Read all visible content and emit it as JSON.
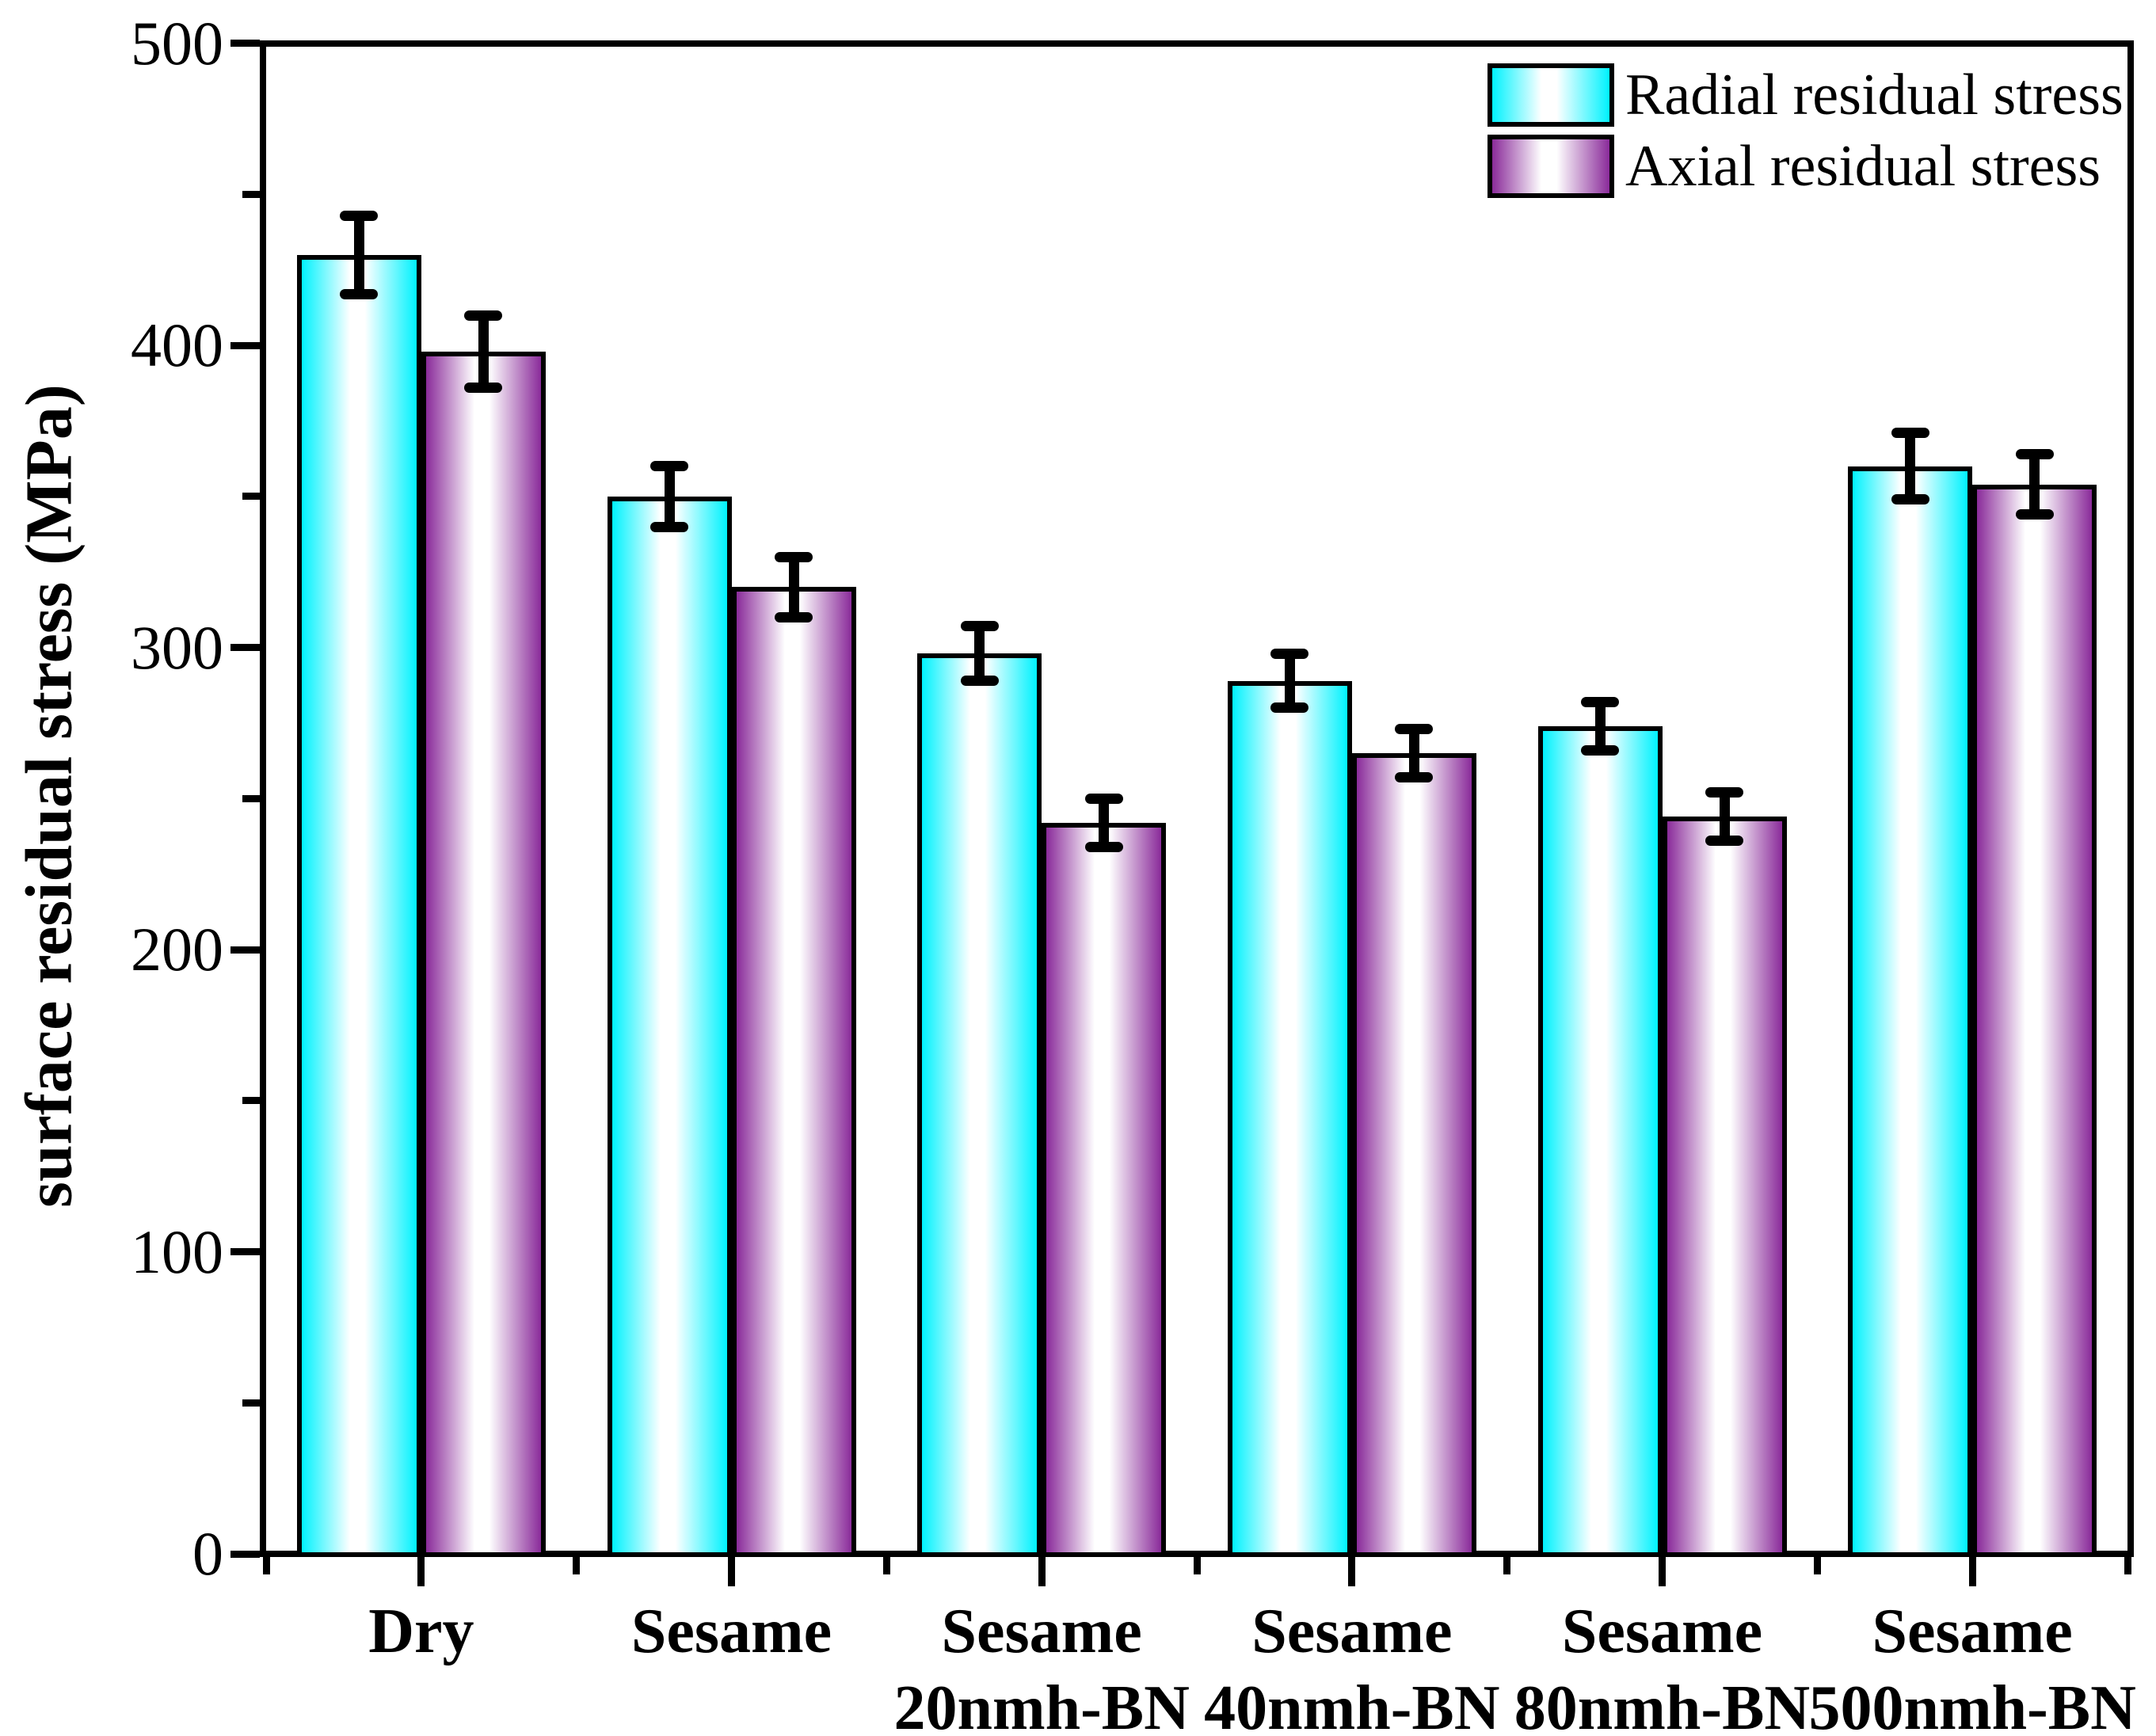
{
  "chart_data": {
    "type": "bar",
    "title": "",
    "ylabel": "surface residual stress (MPa)",
    "xlabel": "",
    "ylim": [
      0,
      500
    ],
    "y_major_ticks": [
      0,
      100,
      200,
      300,
      400,
      500
    ],
    "y_minor_ticks": [
      50,
      150,
      250,
      350,
      450
    ],
    "grid": false,
    "legend_position": "top-right-inside",
    "categories": [
      {
        "line1": "Dry",
        "line2": ""
      },
      {
        "line1": "Sesame",
        "line2": ""
      },
      {
        "line1": "Sesame",
        "line2": "20nmh-BN"
      },
      {
        "line1": "Sesame",
        "line2": "40nmh-BN"
      },
      {
        "line1": "Sesame",
        "line2": "80nmh-BN"
      },
      {
        "line1": "Sesame",
        "line2": "500nmh-BN"
      }
    ],
    "series": [
      {
        "name": "Radial residual stress",
        "color": "#00f2fe",
        "values": [
          430,
          350,
          298,
          289,
          274,
          360
        ],
        "errors": [
          13,
          10,
          9,
          9,
          8,
          11
        ]
      },
      {
        "name": "Axial residual stress",
        "color": "#8a2b9a",
        "values": [
          398,
          320,
          242,
          265,
          244,
          354
        ],
        "errors": [
          12,
          10,
          8,
          8,
          8,
          10
        ]
      }
    ]
  },
  "colors": {
    "axis": "#000000",
    "background": "#ffffff",
    "error_bar": "#000000"
  }
}
